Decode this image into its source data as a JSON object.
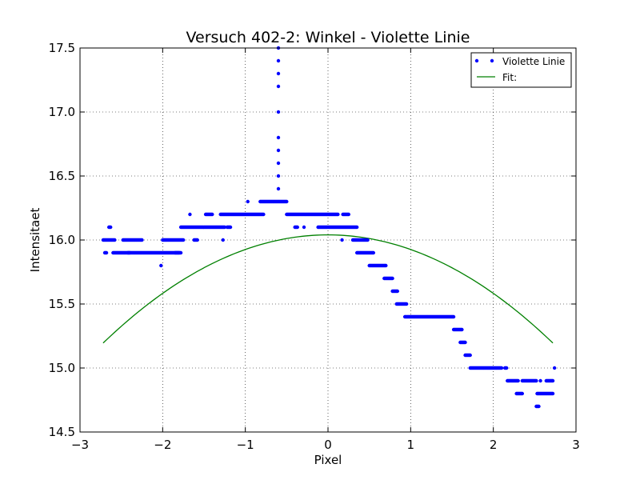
{
  "chart_data": {
    "type": "scatter",
    "title": "Versuch 402-2: Winkel - Violette Linie",
    "xlabel": "Pixel",
    "ylabel": "Intensitaet",
    "xlim": [
      -3,
      3
    ],
    "ylim": [
      14.5,
      17.5
    ],
    "x_ticks": [
      -3,
      -2,
      -1,
      0,
      1,
      2,
      3
    ],
    "x_tick_labels": [
      "−3",
      "−2",
      "−1",
      "0",
      "1",
      "2",
      "3"
    ],
    "y_ticks": [
      14.5,
      15.0,
      15.5,
      16.0,
      16.5,
      17.0,
      17.5
    ],
    "y_tick_labels": [
      "14.5",
      "15.0",
      "15.5",
      "16.0",
      "16.5",
      "17.0",
      "17.5"
    ],
    "grid": true,
    "legend_position": "top-right",
    "series": [
      {
        "name": "Violette Linie",
        "kind": "points",
        "color": "#0000ff",
        "segments": [
          {
            "y": 16.0,
            "x0": -2.72,
            "x1": -2.58,
            "step": 0.01
          },
          {
            "y": 15.9,
            "x0": -2.7,
            "x1": -2.68,
            "step": 0.01
          },
          {
            "y": 16.1,
            "x0": -2.65,
            "x1": -2.63,
            "step": 0.01
          },
          {
            "y": 15.9,
            "x0": -2.6,
            "x1": -2.4,
            "step": 0.01
          },
          {
            "y": 16.0,
            "x0": -2.48,
            "x1": -2.25,
            "step": 0.01
          },
          {
            "y": 15.9,
            "x0": -2.42,
            "x1": -1.8,
            "step": 0.01
          },
          {
            "y": 15.8,
            "x0": -2.02,
            "x1": -2.02,
            "step": 0.01
          },
          {
            "y": 16.0,
            "x0": -2.0,
            "x1": -1.75,
            "step": 0.01
          },
          {
            "y": 15.9,
            "x0": -1.85,
            "x1": -1.78,
            "step": 0.01
          },
          {
            "y": 16.2,
            "x0": -1.67,
            "x1": -1.67,
            "step": 0.01
          },
          {
            "y": 16.1,
            "x0": -1.78,
            "x1": -1.25,
            "step": 0.01
          },
          {
            "y": 16.0,
            "x0": -1.62,
            "x1": -1.58,
            "step": 0.01
          },
          {
            "y": 16.0,
            "x0": -1.27,
            "x1": -1.27,
            "step": 0.01
          },
          {
            "y": 16.2,
            "x0": -1.48,
            "x1": -1.4,
            "step": 0.01
          },
          {
            "y": 16.2,
            "x0": -1.3,
            "x1": -0.78,
            "step": 0.01
          },
          {
            "y": 16.1,
            "x0": -1.22,
            "x1": -1.18,
            "step": 0.01
          },
          {
            "y": 16.3,
            "x0": -0.97,
            "x1": -0.97,
            "step": 0.01
          },
          {
            "y": 16.3,
            "x0": -0.82,
            "x1": -0.5,
            "step": 0.01
          },
          {
            "y": 16.2,
            "x0": -0.5,
            "x1": 0.12,
            "step": 0.01
          },
          {
            "y": 16.1,
            "x0": -0.4,
            "x1": -0.37,
            "step": 0.01
          },
          {
            "y": 16.1,
            "x0": -0.29,
            "x1": -0.29,
            "step": 0.01
          },
          {
            "y": 16.1,
            "x0": -0.12,
            "x1": 0.35,
            "step": 0.01
          },
          {
            "y": 16.2,
            "x0": 0.18,
            "x1": 0.25,
            "step": 0.01
          },
          {
            "y": 16.0,
            "x0": 0.17,
            "x1": 0.17,
            "step": 0.01
          },
          {
            "y": 16.0,
            "x0": 0.3,
            "x1": 0.48,
            "step": 0.01
          },
          {
            "y": 15.9,
            "x0": 0.35,
            "x1": 0.55,
            "step": 0.01
          },
          {
            "y": 15.8,
            "x0": 0.5,
            "x1": 0.7,
            "step": 0.01
          },
          {
            "y": 15.7,
            "x0": 0.68,
            "x1": 0.78,
            "step": 0.01
          },
          {
            "y": 15.6,
            "x0": 0.78,
            "x1": 0.84,
            "step": 0.01
          },
          {
            "y": 15.5,
            "x0": 0.83,
            "x1": 0.95,
            "step": 0.01
          },
          {
            "y": 15.4,
            "x0": 0.93,
            "x1": 1.52,
            "step": 0.01
          },
          {
            "y": 15.3,
            "x0": 1.52,
            "x1": 1.62,
            "step": 0.01
          },
          {
            "y": 15.2,
            "x0": 1.6,
            "x1": 1.66,
            "step": 0.01
          },
          {
            "y": 15.1,
            "x0": 1.66,
            "x1": 1.72,
            "step": 0.01
          },
          {
            "y": 15.0,
            "x0": 1.72,
            "x1": 2.1,
            "step": 0.01
          },
          {
            "y": 15.0,
            "x0": 2.14,
            "x1": 2.16,
            "step": 0.01
          },
          {
            "y": 14.9,
            "x0": 2.17,
            "x1": 2.3,
            "step": 0.01
          },
          {
            "y": 14.8,
            "x0": 2.28,
            "x1": 2.35,
            "step": 0.01
          },
          {
            "y": 14.9,
            "x0": 2.35,
            "x1": 2.52,
            "step": 0.01
          },
          {
            "y": 14.7,
            "x0": 2.52,
            "x1": 2.55,
            "step": 0.01
          },
          {
            "y": 14.8,
            "x0": 2.53,
            "x1": 2.72,
            "step": 0.01
          },
          {
            "y": 14.9,
            "x0": 2.57,
            "x1": 2.57,
            "step": 0.01
          },
          {
            "y": 14.9,
            "x0": 2.64,
            "x1": 2.72,
            "step": 0.01
          },
          {
            "y": 15.0,
            "x0": 2.74,
            "x1": 2.74,
            "step": 0.01
          }
        ],
        "spike": {
          "x": -0.6,
          "y": [
            16.4,
            16.5,
            16.6,
            16.7,
            16.8,
            17.0,
            17.2,
            17.3,
            17.4,
            17.5
          ]
        }
      },
      {
        "name": "Fit:",
        "kind": "curve",
        "color": "#008000",
        "model": "quadratic",
        "coefficients": {
          "a": -0.1142,
          "b": 0.0,
          "c": 16.04
        },
        "x_range": [
          -2.72,
          2.72
        ]
      }
    ]
  }
}
